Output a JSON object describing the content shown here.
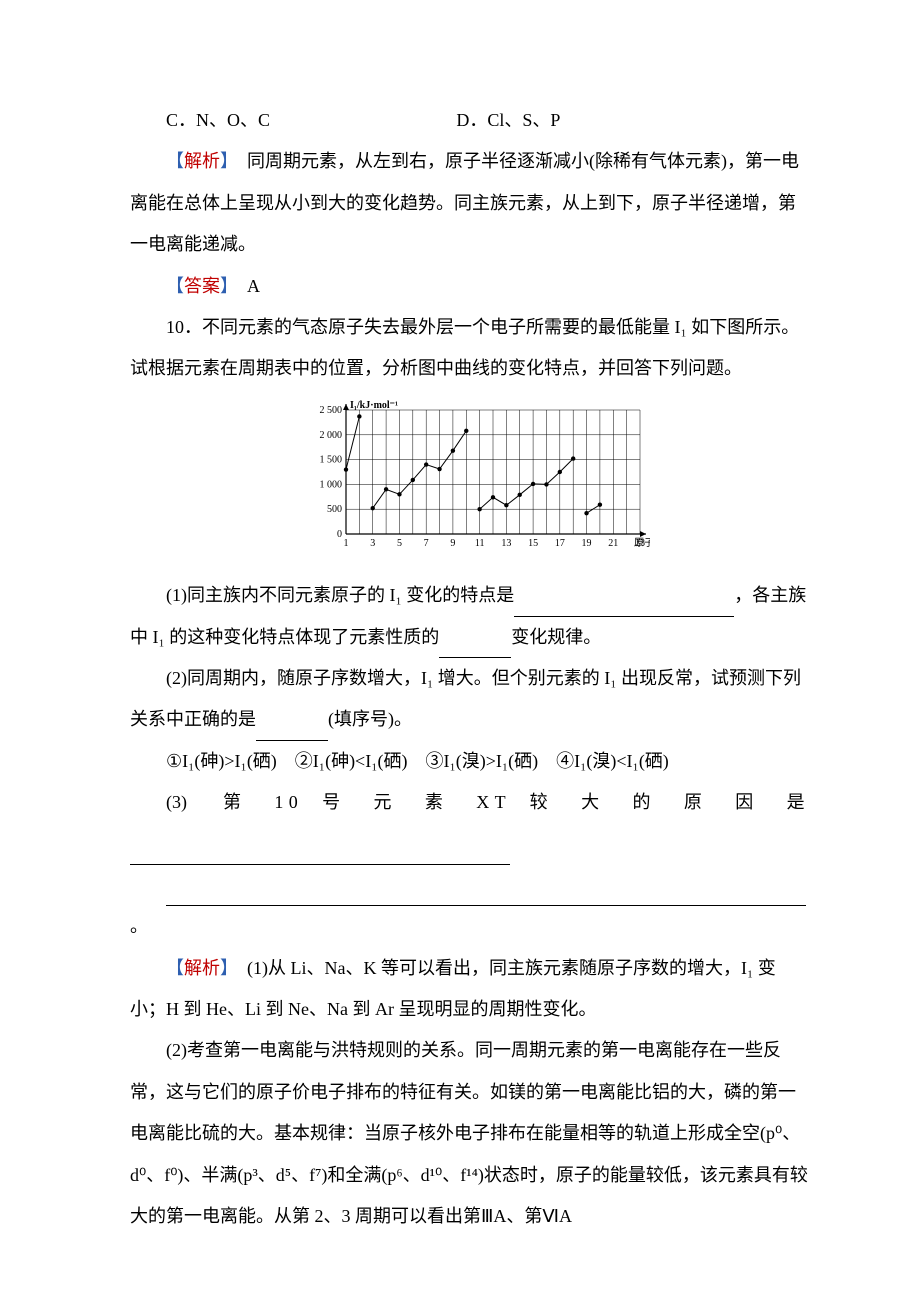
{
  "options_row": {
    "c": "C．N、O、C",
    "d": "D．Cl、S、P"
  },
  "analysis1": {
    "label_open": "【",
    "label_word": "解析",
    "label_close": "】",
    "text": "　同周期元素，从左到右，原子半径逐渐减小(除稀有气体元素)，第一电离能在总体上呈现从小到大的变化趋势。同主族元素，从上到下，原子半径递增，第一电离能递减。"
  },
  "answer1": {
    "label_open": "【",
    "label_word": "答案",
    "label_close": "】",
    "text": "　A"
  },
  "q10_intro": "10．不同元素的气态原子失去最外层一个电子所需要的最低能量 I₁ 如下图所示。试根据元素在周期表中的位置，分析图中曲线的变化特点，并回答下列问题。",
  "chart": {
    "y_label": "I₁/kJ·mol⁻¹",
    "x_label": "原子序数",
    "x_ticks": [
      "1",
      "3",
      "5",
      "7",
      "9",
      "11",
      "13",
      "15",
      "17",
      "19",
      "21",
      "23"
    ],
    "y_ticks": [
      "0",
      "500",
      "1 000",
      "1 500",
      "2 000",
      "2 500"
    ],
    "ylim": [
      0,
      2500
    ],
    "xlim": [
      1,
      23
    ],
    "background_color": "#ffffff",
    "grid_color": "#000000",
    "line_color": "#000000",
    "point_color": "#000000",
    "axis_color": "#000000",
    "line_width": 1,
    "point_radius": 2.2,
    "series": [
      {
        "points": [
          [
            1,
            1300
          ],
          [
            2,
            2370
          ]
        ]
      },
      {
        "points": [
          [
            3,
            520
          ],
          [
            4,
            900
          ],
          [
            5,
            800
          ],
          [
            6,
            1090
          ],
          [
            7,
            1400
          ],
          [
            8,
            1310
          ],
          [
            9,
            1680
          ],
          [
            10,
            2080
          ]
        ]
      },
      {
        "points": [
          [
            11,
            500
          ],
          [
            12,
            740
          ],
          [
            13,
            580
          ],
          [
            14,
            790
          ],
          [
            15,
            1010
          ],
          [
            16,
            1000
          ],
          [
            17,
            1250
          ],
          [
            18,
            1520
          ]
        ]
      },
      {
        "points": [
          [
            19,
            420
          ],
          [
            20,
            590
          ]
        ]
      }
    ],
    "font_size": 10
  },
  "q10_1a": "(1)同主族内不同元素原子的 I₁ 变化的特点是",
  "q10_1b": "，各主族中 I₁ 的这种变化特点体现了元素性质的",
  "q10_1c": "变化规律。",
  "q10_2a": "(2)同周期内，随原子序数增大，I₁ 增大。但个别元素的 I₁ 出现反常，试预测下列关系中正确的是",
  "q10_2b": "(填序号)。",
  "q10_2opts": "①I₁(砷)>I₁(硒)　②I₁(砷)<I₁(硒)　③I₁(溴)>I₁(硒)　④I₁(溴)<I₁(硒)",
  "q10_3prefix": "(3)",
  "q10_3text": "第 10 号 元 素 XT 较 大 的 原 因 是",
  "analysis2": {
    "label_open": "【",
    "label_word": "解析",
    "label_close": "】",
    "p1": "　(1)从 Li、Na、K 等可以看出，同主族元素随原子序数的增大，I₁ 变小；H 到 He、Li 到 Ne、Na 到 Ar 呈现明显的周期性变化。",
    "p2": "(2)考查第一电离能与洪特规则的关系。同一周期元素的第一电离能存在一些反常，这与它们的原子价电子排布的特征有关。如镁的第一电离能比铝的大，磷的第一电离能比硫的大。基本规律：当原子核外电子排布在能量相等的轨道上形成全空(p⁰、d⁰、f⁰)、半满(p³、d⁵、f⁷)和全满(p⁶、d¹⁰、f¹⁴)状态时，原子的能量较低，该元素具有较大的第一电离能。从第 2、3 周期可以看出第ⅢA、第ⅥA"
  },
  "blank_widths": {
    "b1": 220,
    "b2": 72,
    "b3": 72,
    "b4": 380,
    "b5": 640
  }
}
